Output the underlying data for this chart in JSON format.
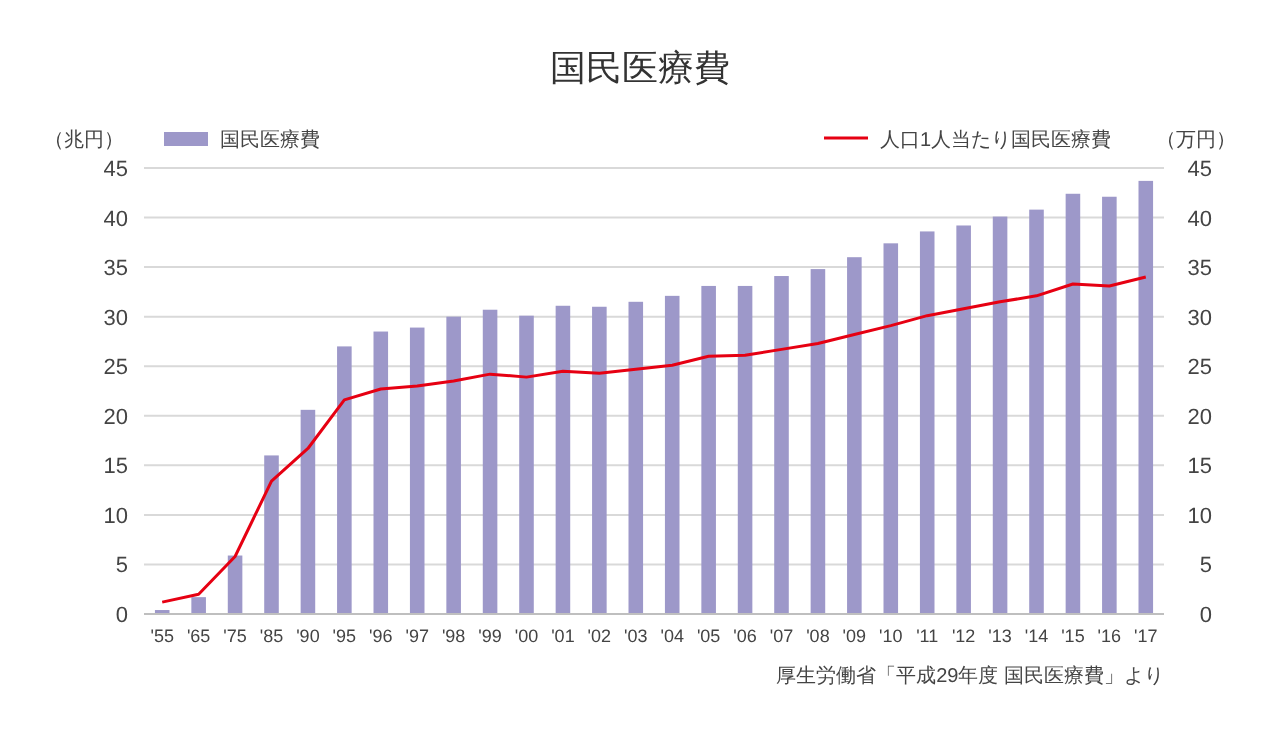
{
  "chart_data": {
    "type": "bar",
    "title": "国民医療費",
    "ylabel": "（兆円）",
    "y2label": "（万円）",
    "annotations": [
      "厚生労働省「平成29年度 国民医療費」より"
    ],
    "categories": [
      "'55",
      "'65",
      "'75",
      "'85",
      "'90",
      "'95",
      "'96",
      "'97",
      "'98",
      "'99",
      "'00",
      "'01",
      "'02",
      "'03",
      "'04",
      "'05",
      "'06",
      "'07",
      "'08",
      "'09",
      "'10",
      "'11",
      "'12",
      "'13",
      "'14",
      "'15",
      "'16",
      "'17"
    ],
    "series": [
      {
        "name": "国民医療費",
        "color": "#9d98c9",
        "values": [
          0.4,
          1.7,
          5.9,
          16.0,
          20.6,
          27.0,
          28.5,
          28.9,
          30.0,
          30.7,
          30.1,
          31.1,
          31.0,
          31.5,
          32.1,
          33.1,
          33.1,
          34.1,
          34.8,
          36.0,
          37.4,
          38.6,
          39.2,
          40.1,
          40.8,
          42.4,
          42.1,
          43.7
        ]
      },
      {
        "name": "人口1人当たり国民医療費",
        "type": "line",
        "axis": "y2",
        "color": "#e60012",
        "values": [
          1.2,
          2.0,
          5.8,
          13.4,
          16.7,
          21.6,
          22.7,
          23.0,
          23.5,
          24.2,
          23.9,
          24.5,
          24.3,
          24.7,
          25.1,
          26.0,
          26.1,
          26.7,
          27.3,
          28.2,
          29.1,
          30.1,
          30.8,
          31.5,
          32.1,
          33.3,
          33.1,
          34.0
        ]
      }
    ],
    "ylim": [
      0,
      45
    ],
    "yticks": [
      0,
      5,
      10,
      15,
      20,
      25,
      30,
      35,
      40,
      45
    ],
    "y2lim": [
      0,
      45
    ],
    "y2ticks": [
      0,
      5,
      10,
      15,
      20,
      25,
      30,
      35,
      40,
      45
    ],
    "grid": "y",
    "legend": "top"
  }
}
